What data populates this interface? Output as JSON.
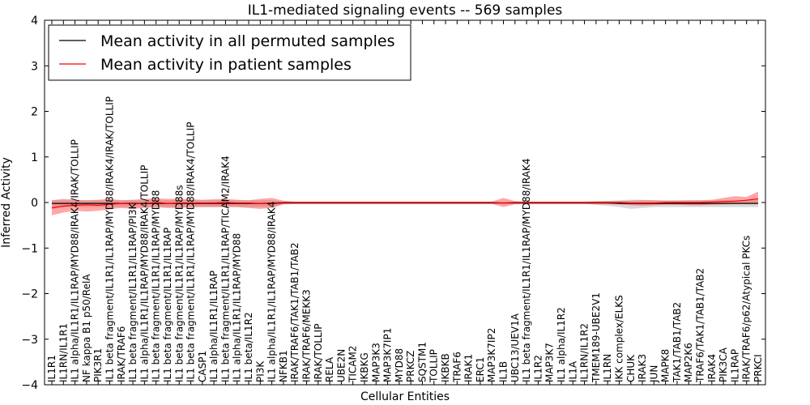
{
  "chart_data": {
    "type": "line",
    "title": "IL1-mediated signaling events -- 569 samples",
    "xlabel": "Cellular Entities",
    "ylabel": "Inferred Activity",
    "ylim": [
      -4,
      4
    ],
    "yticks": [
      4,
      3,
      2,
      1,
      0,
      -1,
      -2,
      -3,
      -4
    ],
    "ytick_labels": [
      "4",
      "3",
      "2",
      "1",
      "0",
      "−1",
      "−2",
      "−3",
      "−4"
    ],
    "legend_position": "top-left",
    "categories": [
      "IL1R1",
      "IL1RN/IL1R1",
      "IL1 alpha/IL1R1/IL1RAP/MYD88/IRAK4/IRAK/TOLLIP",
      "NF kappa B1 p50/RelA",
      "PIK3R1",
      "IL1 beta fragment/IL1R1/IL1RAP/MYD88/IRAK4/IRAK/TOLLIP",
      "IRAK/TRAF6",
      "IL1 beta fragment/IL1R1/IL1RAP/PI3K",
      "IL1 alpha/IL1R1/IL1RAP/MYD88/IRAK4/TOLLIP",
      "IL1 beta fragment/IL1R1/IL1RAP/MYD88",
      "IL1 beta fragment/IL1R1/IL1RAP",
      "IL1 beta fragment/IL1R1/IL1RAP/MYD88s",
      "IL1 beta fragment/IL1R1/IL1RAP/MYD88/IRAK4/TOLLIP",
      "CASP1",
      "IL1 alpha/IL1R1/IL1RAP",
      "IL1 beta fragment/IL1R1/IL1RAP/TICAM2/IRAK4",
      "IL1 alpha/IL1R1/IL1RAP/MYD88",
      "IL1 beta/IL1R2",
      "PI3K",
      "IL1 alpha/IL1R1/IL1RAP/MYD88/IRAK4",
      "NFKB1",
      "IRAK/TRAF6/TAK1/TAB1/TAB2",
      "IRAK/TRAF6/MEKK3",
      "IRAK/TOLLIP",
      "RELA",
      "UBE2N",
      "TICAM2",
      "IKBKG",
      "MAP3K3",
      "MAP3K7IP1",
      "MYD88",
      "PRKCZ",
      "SQSTM1",
      "TOLLIP",
      "IKBKB",
      "TRAF6",
      "IRAK1",
      "ERC1",
      "MAP3K7IP2",
      "IL1B",
      "UBC13/UEV1A",
      "IL1 beta fragment/IL1R1/IL1RAP/MYD88/IRAK4",
      "IL1R2",
      "MAP3K7",
      "IL1 alpha/IL1R2",
      "IL1A",
      "IL1RN/IL1R2",
      "TMEM189-UBE2V1",
      "IL1RN",
      "IKK complex/ELKS",
      "CHUK",
      "IRAK3",
      "JUN",
      "MAPK8",
      "TAK1/TAB1/TAB2",
      "MAP2K6",
      "TRAF6/TAK1/TAB1/TAB2",
      "IRAK4",
      "PIK3CA",
      "IL1RAP",
      "IRAK/TRAF6/p62/Atypical PKCs",
      "PRKCI"
    ],
    "series": [
      {
        "name": "Mean activity in all permuted samples",
        "color": "#000000",
        "values": [
          -0.02,
          -0.02,
          -0.02,
          -0.02,
          -0.02,
          -0.02,
          -0.02,
          -0.02,
          -0.02,
          -0.02,
          -0.02,
          -0.02,
          -0.02,
          -0.02,
          -0.02,
          -0.02,
          -0.02,
          -0.02,
          -0.02,
          -0.02,
          -0.01,
          -0.01,
          -0.01,
          -0.01,
          -0.01,
          -0.01,
          -0.01,
          -0.01,
          -0.01,
          -0.01,
          -0.01,
          -0.01,
          -0.01,
          -0.01,
          -0.01,
          -0.01,
          -0.01,
          -0.01,
          -0.01,
          -0.01,
          -0.01,
          -0.01,
          -0.01,
          -0.01,
          -0.01,
          -0.01,
          -0.01,
          -0.01,
          -0.01,
          -0.02,
          -0.02,
          -0.02,
          -0.02,
          -0.02,
          -0.02,
          -0.02,
          -0.02,
          -0.02,
          -0.02,
          -0.02,
          -0.02,
          -0.02
        ],
        "band_upper": [
          0.05,
          0.05,
          0.05,
          0.05,
          0.05,
          0.05,
          0.05,
          0.05,
          0.05,
          0.05,
          0.05,
          0.05,
          0.05,
          0.05,
          0.05,
          0.05,
          0.05,
          0.05,
          0.05,
          0.05,
          0.02,
          0.02,
          0.02,
          0.02,
          0.02,
          0.02,
          0.02,
          0.02,
          0.02,
          0.02,
          0.02,
          0.02,
          0.02,
          0.02,
          0.02,
          0.02,
          0.02,
          0.02,
          0.02,
          0.02,
          0.02,
          0.02,
          0.02,
          0.02,
          0.02,
          0.02,
          0.02,
          0.02,
          0.03,
          0.05,
          0.06,
          0.06,
          0.05,
          0.05,
          0.05,
          0.05,
          0.05,
          0.05,
          0.05,
          0.05,
          0.05,
          0.05
        ],
        "band_lower": [
          -0.1,
          -0.1,
          -0.1,
          -0.1,
          -0.1,
          -0.1,
          -0.1,
          -0.1,
          -0.1,
          -0.1,
          -0.1,
          -0.1,
          -0.1,
          -0.1,
          -0.1,
          -0.1,
          -0.1,
          -0.1,
          -0.1,
          -0.1,
          -0.04,
          -0.04,
          -0.04,
          -0.04,
          -0.04,
          -0.04,
          -0.04,
          -0.04,
          -0.04,
          -0.04,
          -0.04,
          -0.04,
          -0.04,
          -0.04,
          -0.04,
          -0.04,
          -0.04,
          -0.04,
          -0.04,
          -0.04,
          -0.04,
          -0.04,
          -0.04,
          -0.04,
          -0.04,
          -0.04,
          -0.04,
          -0.05,
          -0.07,
          -0.1,
          -0.14,
          -0.12,
          -0.1,
          -0.1,
          -0.1,
          -0.1,
          -0.1,
          -0.1,
          -0.1,
          -0.1,
          -0.1,
          -0.1
        ]
      },
      {
        "name": "Mean activity in patient samples",
        "color": "#ff0000",
        "values": [
          -0.12,
          -0.08,
          -0.06,
          -0.05,
          -0.06,
          -0.04,
          -0.02,
          -0.03,
          -0.02,
          0.0,
          -0.02,
          -0.01,
          -0.01,
          -0.01,
          -0.01,
          0.0,
          -0.01,
          -0.01,
          -0.02,
          -0.01,
          0.0,
          0.0,
          0.0,
          0.0,
          0.0,
          0.0,
          0.0,
          0.0,
          0.0,
          0.0,
          0.0,
          0.0,
          0.0,
          0.0,
          0.0,
          0.0,
          0.0,
          0.0,
          0.0,
          -0.01,
          0.0,
          0.0,
          0.0,
          0.0,
          0.0,
          0.0,
          0.0,
          0.0,
          0.0,
          0.0,
          -0.01,
          -0.01,
          -0.01,
          0.0,
          0.0,
          0.0,
          0.0,
          0.01,
          0.02,
          0.03,
          0.05,
          0.08
        ],
        "band_upper": [
          0.05,
          0.08,
          0.06,
          0.05,
          0.06,
          0.08,
          0.05,
          0.06,
          0.08,
          0.09,
          0.08,
          0.08,
          0.07,
          0.06,
          0.07,
          0.08,
          0.06,
          0.05,
          0.08,
          0.1,
          0.04,
          0.02,
          0.02,
          0.02,
          0.02,
          0.02,
          0.02,
          0.02,
          0.02,
          0.02,
          0.02,
          0.02,
          0.02,
          0.02,
          0.02,
          0.02,
          0.02,
          0.02,
          0.02,
          0.1,
          0.03,
          0.02,
          0.02,
          0.02,
          0.02,
          0.02,
          0.02,
          0.03,
          0.03,
          0.03,
          0.04,
          0.05,
          0.05,
          0.04,
          0.04,
          0.05,
          0.05,
          0.06,
          0.1,
          0.14,
          0.12,
          0.24
        ],
        "band_lower": [
          -0.28,
          -0.22,
          -0.18,
          -0.2,
          -0.18,
          -0.15,
          -0.12,
          -0.14,
          -0.12,
          -0.1,
          -0.12,
          -0.12,
          -0.1,
          -0.1,
          -0.1,
          -0.1,
          -0.1,
          -0.12,
          -0.14,
          -0.12,
          -0.04,
          -0.03,
          -0.03,
          -0.03,
          -0.03,
          -0.03,
          -0.03,
          -0.03,
          -0.03,
          -0.03,
          -0.03,
          -0.03,
          -0.03,
          -0.03,
          -0.03,
          -0.03,
          -0.03,
          -0.03,
          -0.03,
          -0.1,
          -0.04,
          -0.03,
          -0.03,
          -0.03,
          -0.03,
          -0.03,
          -0.03,
          -0.04,
          -0.04,
          -0.04,
          -0.06,
          -0.07,
          -0.06,
          -0.05,
          -0.05,
          -0.06,
          -0.06,
          -0.05,
          -0.04,
          -0.03,
          -0.02,
          -0.02
        ]
      }
    ]
  }
}
